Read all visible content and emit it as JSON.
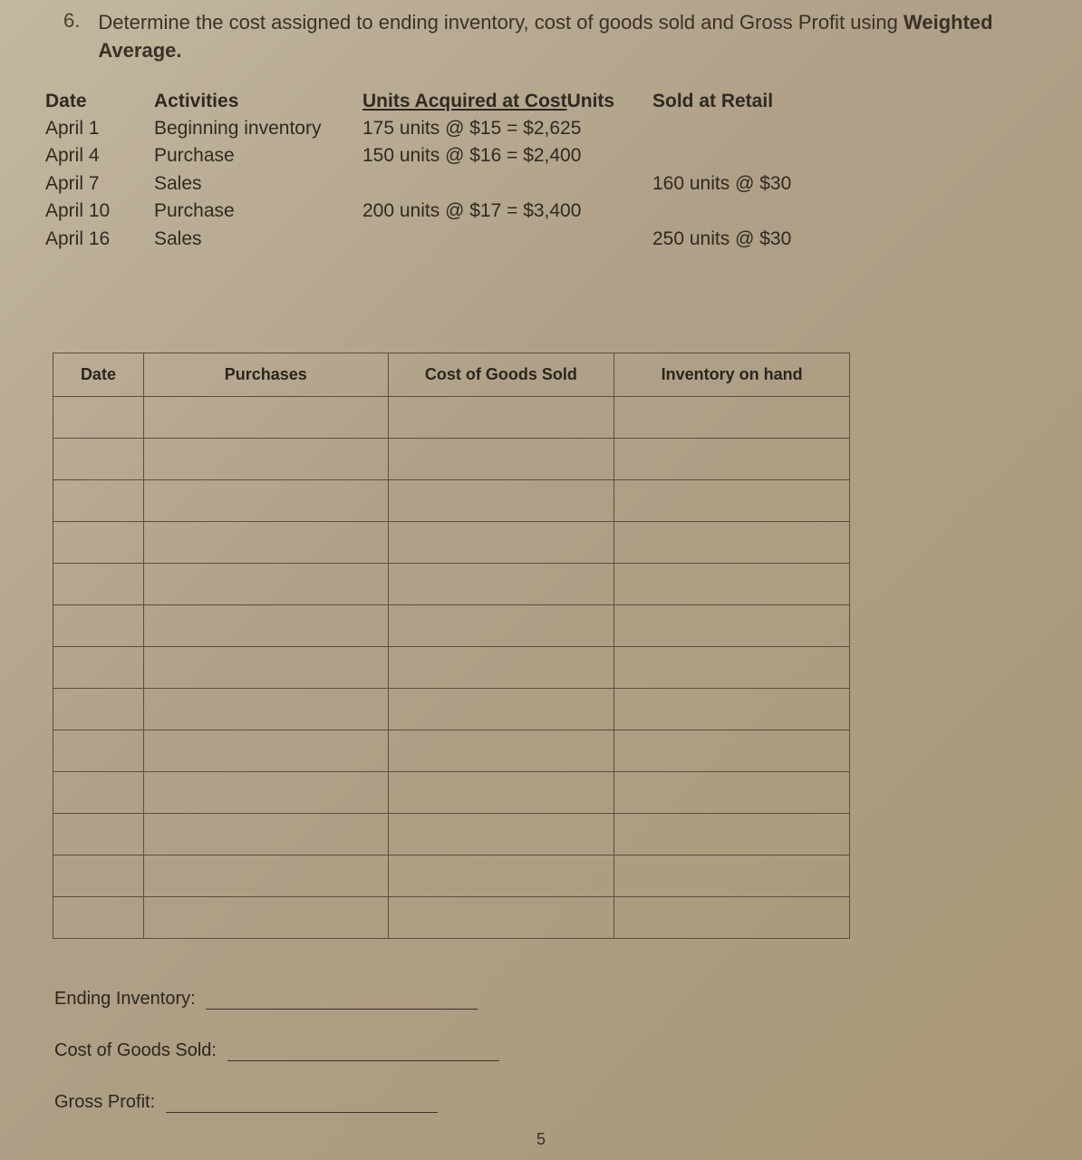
{
  "question": {
    "number": "6.",
    "text_pre": "Determine the cost assigned to ending inventory, cost of goods sold and Gross Profit using ",
    "bold1": "Weighted",
    "bold2": "Average."
  },
  "data_header": {
    "date": "Date",
    "activities": "Activities",
    "acquired_pre": "Units Acquired at Cost",
    "acquired_post": "Units",
    "sold": "Sold at Retail"
  },
  "rows": [
    {
      "date": "April 1",
      "act": "Beginning inventory",
      "acq": "175 units @ $15 = $2,625",
      "sold": ""
    },
    {
      "date": "April 4",
      "act": "Purchase",
      "acq": "150 units @ $16 = $2,400",
      "sold": ""
    },
    {
      "date": "April 7",
      "act": "Sales",
      "acq": "",
      "sold": "160 units @ $30"
    },
    {
      "date": "April 10",
      "act": "Purchase",
      "acq": "200 units @ $17 = $3,400",
      "sold": ""
    },
    {
      "date": "April 16",
      "act": "Sales",
      "acq": "",
      "sold": "250 units @ $30"
    }
  ],
  "worksheet": {
    "headers": {
      "date": "Date",
      "purchases": "Purchases",
      "cogs": "Cost of Goods Sold",
      "inv": "Inventory on hand"
    },
    "blank_rows": 13
  },
  "answers": {
    "ei": "Ending Inventory:",
    "cogs": "Cost of Goods Sold:",
    "gp": "Gross Profit:"
  },
  "page_number": "5",
  "colors": {
    "text": "#2a2a2a",
    "border": "#5a5040"
  }
}
